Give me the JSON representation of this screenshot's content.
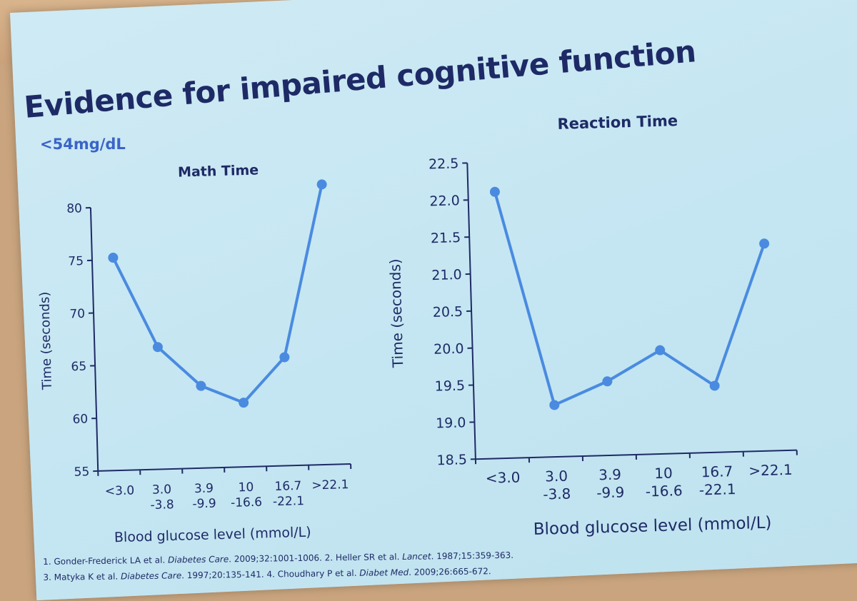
{
  "slide": {
    "title": "Evidence for impaired cognitive function",
    "subtitle": "<54mg/dL",
    "footnotes": [
      [
        "1. Gonder-Frederick LA et al. ",
        "Diabetes Care",
        ". 2009;32:1001-1006. 2. Heller SR et al. ",
        "Lancet",
        ". 1987;15:359-363."
      ],
      [
        "3. Matyka K et al. ",
        "Diabetes Care",
        ". 1997;20:135-141. 4. Choudhary P et al. ",
        "Diabet Med",
        ". 2009;26:665-672."
      ]
    ]
  },
  "chart_data": [
    {
      "type": "line",
      "title": "Math Time",
      "xlabel": "Blood glucose level (mmol/L)",
      "ylabel": "Time (seconds)",
      "categories": [
        [
          "<3.0"
        ],
        [
          "3.0",
          "-3.8"
        ],
        [
          "3.9",
          "-9.9"
        ],
        [
          "10",
          "-16.6"
        ],
        [
          "16.7",
          "-22.1"
        ],
        [
          ">22.1"
        ]
      ],
      "values": [
        75.2,
        66.6,
        62.8,
        61.1,
        65.3,
        81.6
      ],
      "ylim": [
        55,
        80
      ],
      "yticks": [
        "55",
        "60",
        "65",
        "70",
        "75",
        "80"
      ],
      "color": "#4a8be0"
    },
    {
      "type": "line",
      "title": "Reaction Time",
      "xlabel": "Blood glucose level (mmol/L)",
      "ylabel": "Time (seconds)",
      "categories": [
        [
          "<3.0"
        ],
        [
          "3.0",
          "-3.8"
        ],
        [
          "3.9",
          "-9.9"
        ],
        [
          "10",
          "-16.6"
        ],
        [
          "16.7",
          "-22.1"
        ],
        [
          ">22.1"
        ]
      ],
      "values": [
        22.1,
        19.2,
        19.5,
        19.9,
        19.4,
        21.3
      ],
      "ylim": [
        18.5,
        22.5
      ],
      "yticks": [
        "18.5",
        "19.0",
        "19.5",
        "20.0",
        "20.5",
        "21.0",
        "21.5",
        "22.0",
        "22.5"
      ],
      "color": "#4a8be0"
    }
  ]
}
